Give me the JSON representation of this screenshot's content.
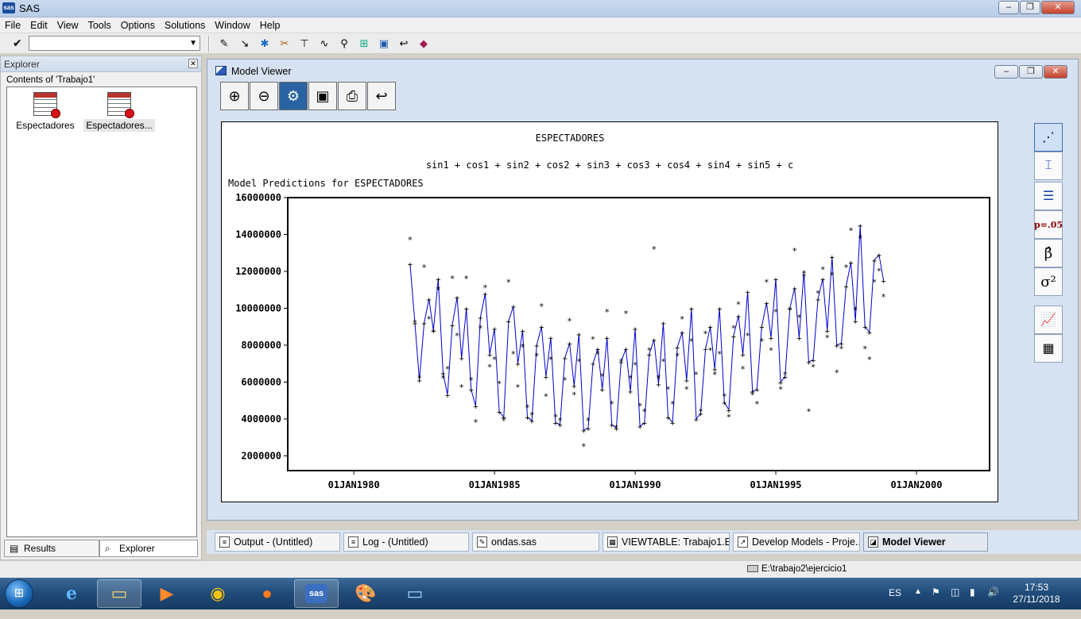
{
  "app": {
    "title": "SAS",
    "icon": "sas-icon"
  },
  "menu": [
    "File",
    "Edit",
    "View",
    "Tools",
    "Options",
    "Solutions",
    "Window",
    "Help"
  ],
  "command_box": {
    "value": ""
  },
  "explorer": {
    "title": "Explorer",
    "contents_label": "Contents of 'Trabajo1'",
    "items": [
      {
        "label": "Espectadores",
        "selected": false
      },
      {
        "label": "Espectadores...",
        "selected": true
      }
    ],
    "tabs": [
      "Results",
      "Explorer"
    ]
  },
  "model_viewer": {
    "title": "Model Viewer",
    "toolbar": [
      "zoom-in-icon",
      "zoom-out-icon",
      "model-icon",
      "save-icon",
      "print-icon",
      "undo-icon"
    ],
    "side_buttons": [
      "scatter-plot-icon",
      "error-bar-icon",
      "bar-list-icon",
      "p=.05",
      "β̂",
      "σ²",
      "line-graph-icon",
      "table-icon"
    ]
  },
  "chart_data": {
    "type": "line",
    "title": "ESPECTADORES",
    "subtitle": "sin1 + cos1 + sin2 + cos2 + sin3 + cos3 + cos4 + sin4 + sin5 + c",
    "plot_label": "Model Predictions for ESPECTADORES",
    "ylim": [
      1200000,
      16000000
    ],
    "yticks": [
      2000000,
      4000000,
      6000000,
      8000000,
      10000000,
      12000000,
      14000000,
      16000000
    ],
    "ytick_labels": [
      "2000000",
      "4000000",
      "6000000",
      "8000000",
      "10000000",
      "12000000",
      "14000000",
      "16000000"
    ],
    "xlim": [
      1977.65,
      2002.6
    ],
    "xticks": [
      1980,
      1985,
      1990,
      1995,
      2000
    ],
    "xtick_labels": [
      "01JAN1980",
      "01JAN1985",
      "01JAN1990",
      "01JAN1995",
      "01JAN2000"
    ],
    "colors": {
      "predicted": "#0000cc",
      "actual": "#000000"
    },
    "series": [
      {
        "marker": "+",
        "line": true,
        "x": [
          1982.0,
          1982.17,
          1982.33,
          1982.5,
          1982.67,
          1982.83,
          1983.0,
          1983.17,
          1983.33,
          1983.5,
          1983.67,
          1983.83,
          1984.0,
          1984.17,
          1984.33,
          1984.5,
          1984.67,
          1984.83,
          1985.0,
          1985.17,
          1985.33,
          1985.5,
          1985.67,
          1985.83,
          1986.0,
          1986.17,
          1986.33,
          1986.5,
          1986.67,
          1986.83,
          1987.0,
          1987.17,
          1987.33,
          1987.5,
          1987.67,
          1987.83,
          1988.0,
          1988.17,
          1988.33,
          1988.5,
          1988.67,
          1988.83,
          1989.0,
          1989.17,
          1989.33,
          1989.5,
          1989.67,
          1989.83,
          1990.0,
          1990.17,
          1990.33,
          1990.5,
          1990.67,
          1990.83,
          1991.0,
          1991.17,
          1991.33,
          1991.5,
          1991.67,
          1991.83,
          1992.0,
          1992.17,
          1992.33,
          1992.5,
          1992.67,
          1992.83,
          1993.0,
          1993.17,
          1993.33,
          1993.5,
          1993.67,
          1993.83,
          1994.0,
          1994.17,
          1994.33,
          1994.5,
          1994.67,
          1994.83,
          1995.0,
          1995.17,
          1995.33,
          1995.5,
          1995.67,
          1995.83,
          1996.0,
          1996.17,
          1996.33,
          1996.5,
          1996.67,
          1996.83,
          1997.0,
          1997.17,
          1997.33,
          1997.5,
          1997.67,
          1997.83,
          1998.0,
          1998.17,
          1998.33,
          1998.5,
          1998.67,
          1998.83
        ],
        "y": [
          12400000,
          9200000,
          6100000,
          9200000,
          10500000,
          8800000,
          11600000,
          6500000,
          5300000,
          9100000,
          10600000,
          7300000,
          10000000,
          5600000,
          4700000,
          9500000,
          10800000,
          7500000,
          8900000,
          4400000,
          4100000,
          9300000,
          10100000,
          7000000,
          8800000,
          4100000,
          3900000,
          8000000,
          9000000,
          6300000,
          8400000,
          3800000,
          3700000,
          7300000,
          8100000,
          5800000,
          8600000,
          3400000,
          3500000,
          7000000,
          7800000,
          5600000,
          8400000,
          3700000,
          3500000,
          7100000,
          7800000,
          5500000,
          8900000,
          3600000,
          3800000,
          7500000,
          8300000,
          5900000,
          9200000,
          4100000,
          3800000,
          7900000,
          8700000,
          6100000,
          10000000,
          4000000,
          4300000,
          7800000,
          9000000,
          6700000,
          10000000,
          4900000,
          4500000,
          8500000,
          9600000,
          7500000,
          10900000,
          5500000,
          5600000,
          9000000,
          10300000,
          8400000,
          11600000,
          6000000,
          6300000,
          10000000,
          11100000,
          8400000,
          12000000,
          7100000,
          7200000,
          10500000,
          11600000,
          8800000,
          12800000,
          8000000,
          8100000,
          11200000,
          12500000,
          9300000,
          14500000,
          9000000,
          8700000,
          12600000,
          12900000,
          11500000
        ]
      },
      {
        "marker": "*",
        "line": false,
        "x": [
          1982.0,
          1982.17,
          1982.33,
          1982.5,
          1982.67,
          1982.83,
          1983.0,
          1983.17,
          1983.33,
          1983.5,
          1983.67,
          1983.83,
          1984.0,
          1984.17,
          1984.33,
          1984.5,
          1984.67,
          1984.83,
          1985.0,
          1985.17,
          1985.33,
          1985.5,
          1985.67,
          1985.83,
          1986.0,
          1986.17,
          1986.33,
          1986.5,
          1986.67,
          1986.83,
          1987.0,
          1987.17,
          1987.33,
          1987.5,
          1987.67,
          1987.83,
          1988.0,
          1988.17,
          1988.33,
          1988.5,
          1988.67,
          1988.83,
          1989.0,
          1989.17,
          1989.33,
          1989.5,
          1989.67,
          1989.83,
          1990.0,
          1990.17,
          1990.33,
          1990.5,
          1990.67,
          1990.83,
          1991.0,
          1991.17,
          1991.33,
          1991.5,
          1991.67,
          1991.83,
          1992.0,
          1992.17,
          1992.33,
          1992.5,
          1992.67,
          1992.83,
          1993.0,
          1993.17,
          1993.33,
          1993.5,
          1993.67,
          1993.83,
          1994.0,
          1994.17,
          1994.33,
          1994.5,
          1994.67,
          1994.83,
          1995.0,
          1995.17,
          1995.33,
          1995.5,
          1995.67,
          1995.83,
          1996.0,
          1996.17,
          1996.33,
          1996.5,
          1996.67,
          1996.83,
          1997.0,
          1997.17,
          1997.33,
          1997.5,
          1997.67,
          1997.83,
          1998.0,
          1998.17,
          1998.33,
          1998.5,
          1998.67,
          1998.83
        ],
        "y": [
          13800000,
          9300000,
          6300000,
          12300000,
          9500000,
          8800000,
          11100000,
          6300000,
          6800000,
          11700000,
          8600000,
          5800000,
          11700000,
          6200000,
          3900000,
          9000000,
          11200000,
          6900000,
          7300000,
          6000000,
          4000000,
          11500000,
          7600000,
          5800000,
          8000000,
          4700000,
          4300000,
          7500000,
          10200000,
          5300000,
          7300000,
          4200000,
          4000000,
          6200000,
          9400000,
          5400000,
          7200000,
          2600000,
          4000000,
          8400000,
          7600000,
          6400000,
          9900000,
          4900000,
          3600000,
          7200000,
          9800000,
          6300000,
          7000000,
          4800000,
          4500000,
          7800000,
          13300000,
          6300000,
          7200000,
          5700000,
          4900000,
          7500000,
          9500000,
          5700000,
          8300000,
          6500000,
          4500000,
          8700000,
          7800000,
          6500000,
          7600000,
          5300000,
          4200000,
          9000000,
          10300000,
          6800000,
          8600000,
          5400000,
          4900000,
          8300000,
          11500000,
          7800000,
          9900000,
          5700000,
          6500000,
          10000000,
          13200000,
          9600000,
          11800000,
          4500000,
          6900000,
          10900000,
          12200000,
          8500000,
          11900000,
          6600000,
          7900000,
          12300000,
          14300000,
          10000000,
          13900000,
          7900000,
          7300000,
          11500000,
          12100000,
          10700000
        ]
      }
    ],
    "grid": false,
    "legend": "none"
  },
  "window_tabs": [
    {
      "label": "Output - (Untitled)",
      "active": false
    },
    {
      "label": "Log - (Untitled)",
      "active": false
    },
    {
      "label": "ondas.sas",
      "active": false
    },
    {
      "label": "VIEWTABLE: Trabajo1.E...",
      "active": false
    },
    {
      "label": "Develop Models - Proje...",
      "active": false
    },
    {
      "label": "Model Viewer",
      "active": true
    }
  ],
  "status": {
    "path": "E:\\trabajo2\\ejercicio1"
  },
  "taskbar": {
    "apps": [
      "internet-explorer-icon",
      "file-explorer-icon",
      "media-player-icon",
      "chrome-icon",
      "firefox-icon",
      "sas-taskbar-icon",
      "paint-icon",
      "screen-icon"
    ],
    "sas_label": "sas",
    "language": "ES",
    "time": "17:53",
    "date": "27/11/2018"
  }
}
